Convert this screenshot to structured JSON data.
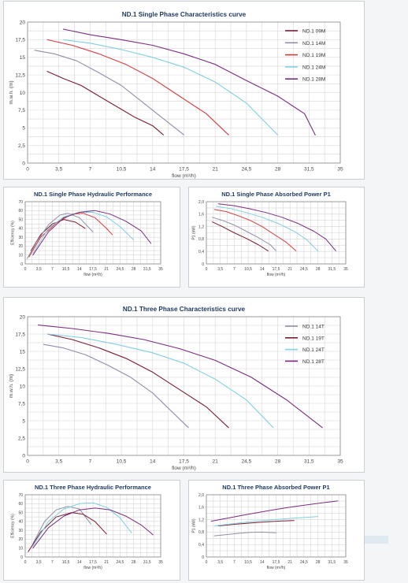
{
  "colors": {
    "09M": "#7a1c2e",
    "14M": "#8d8fa8",
    "19M": "#d63a3a",
    "24M": "#7fd0e0",
    "28M": "#7b2c7e",
    "14T": "#8d8fa8",
    "19T": "#7a1c2e",
    "24T": "#7fd0e0",
    "28T": "#7b2c7e"
  },
  "charts": [
    {
      "id": "single-characteristics",
      "chart_data": {
        "type": "line",
        "title": "ND.1 Single Phase Characteristics curve",
        "xlabel": "flow (m³/h)",
        "ylabel": "m.w.h. (m)",
        "xlim": [
          0,
          35
        ],
        "ylim": [
          0,
          20
        ],
        "xticks": [
          "0",
          "3,5",
          "7",
          "10,5",
          "14",
          "17,5",
          "21",
          "24,5",
          "28",
          "31,5",
          "35"
        ],
        "yticks": [
          "0",
          "2,5",
          "5",
          "7,5",
          "10",
          "12,5",
          "15",
          "17,5",
          "20"
        ],
        "grid": true,
        "legend": "top-right",
        "series": [
          {
            "name": "ND.1 09M",
            "key": "09M",
            "x": [
              2.2,
              4,
              6,
              8,
              10,
              12,
              14,
              15.2
            ],
            "y": [
              13,
              12,
              11,
              9.5,
              8,
              6.5,
              5.3,
              4
            ]
          },
          {
            "name": "ND.1 14M",
            "key": "14M",
            "x": [
              0.8,
              3,
              5.5,
              8,
              10.5,
              13,
              15,
              17.5
            ],
            "y": [
              16,
              15.5,
              14.5,
              12.8,
              11,
              8.5,
              6.5,
              4
            ]
          },
          {
            "name": "ND.1 19M",
            "key": "19M",
            "x": [
              2.2,
              5,
              8,
              11,
              14,
              17,
              20,
              22.5
            ],
            "y": [
              17.5,
              16.7,
              15.5,
              14,
              12,
              9.5,
              7,
              4
            ]
          },
          {
            "name": "ND.1 24M",
            "key": "24M",
            "x": [
              4,
              7,
              10.5,
              14,
              17.5,
              21,
              24.5,
              28
            ],
            "y": [
              17.5,
              17,
              16.1,
              15,
              13.6,
              11.5,
              8.5,
              4
            ]
          },
          {
            "name": "ND.1 28M",
            "key": "28M",
            "x": [
              4,
              7,
              10.5,
              14,
              17.5,
              21,
              24.5,
              28,
              31,
              32.2
            ],
            "y": [
              19,
              18.2,
              17.5,
              16.7,
              15.5,
              14,
              11.7,
              9.5,
              7,
              4
            ]
          }
        ]
      }
    },
    {
      "id": "single-hydraulic",
      "chart_data": {
        "type": "line",
        "title": "ND.1 Single Phase Hydraulic Performance",
        "xlabel": "flow (m³/h)",
        "ylabel": "Efficiency (%)",
        "xlim": [
          0,
          35
        ],
        "ylim": [
          0,
          70
        ],
        "xticks": [
          "0",
          "3,5",
          "7",
          "10,5",
          "14",
          "17,5",
          "21",
          "24,5",
          "28",
          "31,5",
          "35"
        ],
        "yticks": [
          "0",
          "10",
          "20",
          "30",
          "40",
          "50",
          "60",
          "70"
        ],
        "grid": true,
        "series": [
          {
            "key": "09M",
            "x": [
              1.5,
              4,
              7,
              10,
              13,
              15.5
            ],
            "y": [
              15,
              33,
              45,
              50,
              47,
              40
            ]
          },
          {
            "key": "14M",
            "x": [
              0.5,
              3,
              6,
              9,
              11,
              14,
              17.5
            ],
            "y": [
              6,
              25,
              44,
              55,
              57,
              52,
              36
            ]
          },
          {
            "key": "19M",
            "x": [
              1,
              4,
              8,
              12,
              15,
              18,
              21,
              22.5
            ],
            "y": [
              8,
              30,
              46,
              56,
              57,
              52,
              40,
              33
            ]
          },
          {
            "key": "24M",
            "x": [
              2,
              6,
              10,
              14,
              17.5,
              21,
              24.5,
              28
            ],
            "y": [
              12,
              40,
              53,
              58,
              58,
              53,
              42,
              27
            ]
          },
          {
            "key": "28M",
            "x": [
              2,
              6,
              10,
              14,
              18,
              22,
              26,
              30,
              32.5
            ],
            "y": [
              10,
              36,
              52,
              58,
              60,
              56,
              48,
              37,
              23
            ]
          }
        ]
      }
    },
    {
      "id": "single-power",
      "chart_data": {
        "type": "line",
        "title": "ND.1 Single Phase Absorbed Power P1",
        "xlabel": "flow (m³/h)",
        "ylabel": "P1 (kW)",
        "xlim": [
          0,
          35
        ],
        "ylim": [
          0,
          2
        ],
        "xticks": [
          "0",
          "3,5",
          "7",
          "10,5",
          "14",
          "17,5",
          "21",
          "24,5",
          "28",
          "31,5",
          "35"
        ],
        "yticks": [
          "0",
          "0,4",
          "0,8",
          "1,2",
          "1,6",
          "2,0"
        ],
        "grid": true,
        "series": [
          {
            "key": "09M",
            "x": [
              1.5,
              4,
              7,
              10,
              13,
              15.5
            ],
            "y": [
              1.35,
              1.2,
              1.0,
              0.82,
              0.62,
              0.42
            ]
          },
          {
            "key": "14M",
            "x": [
              1.5,
              4,
              7,
              10,
              13,
              16,
              17.5
            ],
            "y": [
              1.5,
              1.4,
              1.25,
              1.05,
              0.85,
              0.62,
              0.42
            ]
          },
          {
            "key": "19M",
            "x": [
              2,
              5,
              8,
              11,
              14,
              17,
              20,
              22.5
            ],
            "y": [
              1.75,
              1.68,
              1.55,
              1.4,
              1.2,
              0.95,
              0.7,
              0.42
            ]
          },
          {
            "key": "24M",
            "x": [
              2.5,
              6,
              10,
              14,
              18,
              22,
              25,
              28
            ],
            "y": [
              1.85,
              1.78,
              1.65,
              1.5,
              1.3,
              1.05,
              0.8,
              0.42
            ]
          },
          {
            "key": "28M",
            "x": [
              3,
              7,
              11,
              15,
              19,
              23,
              27,
              30,
              32.5
            ],
            "y": [
              1.93,
              1.87,
              1.77,
              1.65,
              1.5,
              1.3,
              1.05,
              0.8,
              0.42
            ]
          }
        ]
      }
    },
    {
      "id": "three-characteristics",
      "chart_data": {
        "type": "line",
        "title": "ND.1 Three Phase Characteristics curve",
        "xlabel": "flow (m³/h)",
        "ylabel": "m.w.h. (m)",
        "xlim": [
          0,
          35
        ],
        "ylim": [
          0,
          20
        ],
        "xticks": [
          "0",
          "3,5",
          "7",
          "10,5",
          "14",
          "17,5",
          "21",
          "24,5",
          "28",
          "31,5",
          "35"
        ],
        "yticks": [
          "0",
          "2,5",
          "5",
          "7,5",
          "10",
          "12,5",
          "15",
          "17,5",
          "20"
        ],
        "grid": true,
        "legend": "top-right",
        "series": [
          {
            "name": "ND.1 14T",
            "key": "14T",
            "x": [
              1.8,
              4,
              6.5,
              9,
              11.5,
              14,
              16,
              18
            ],
            "y": [
              16,
              15.5,
              14.5,
              13,
              11.3,
              9,
              6.5,
              4
            ]
          },
          {
            "name": "ND.1 19T",
            "key": "19T",
            "x": [
              2.2,
              5,
              8,
              11,
              14,
              17,
              20,
              22.5
            ],
            "y": [
              17.5,
              16.7,
              15.5,
              14,
              12,
              9.5,
              7,
              4
            ]
          },
          {
            "name": "ND.1 24T",
            "key": "24T",
            "x": [
              2.2,
              6,
              10,
              14,
              17.5,
              21,
              24.5,
              27.5
            ],
            "y": [
              17.5,
              17,
              16,
              14.8,
              13.3,
              11,
              8,
              4
            ]
          },
          {
            "name": "ND.1 28T",
            "key": "28T",
            "x": [
              1.2,
              5,
              9,
              13,
              17,
              21,
              25,
              29,
              33
            ],
            "y": [
              18.8,
              18.3,
              17.6,
              16.7,
              15.4,
              13.7,
              11.3,
              8,
              4
            ]
          }
        ]
      }
    },
    {
      "id": "three-hydraulic",
      "chart_data": {
        "type": "line",
        "title": "ND.1 Three Phase Hydraulic Performance",
        "xlabel": "flow (m³/h)",
        "ylabel": "Efficiency (%)",
        "xlim": [
          0,
          35
        ],
        "ylim": [
          0,
          70
        ],
        "xticks": [
          "0",
          "3,5",
          "7",
          "10,5",
          "14",
          "17,5",
          "21",
          "24,5",
          "28",
          "31,5",
          "35"
        ],
        "yticks": [
          "0",
          "10",
          "20",
          "30",
          "40",
          "50",
          "60",
          "70"
        ],
        "grid": true,
        "series": [
          {
            "key": "14T",
            "x": [
              2,
              5,
              8,
              11,
              14,
              17
            ],
            "y": [
              15,
              40,
              53,
              57,
              54,
              37
            ]
          },
          {
            "key": "19T",
            "x": [
              0.8,
              4,
              8,
              12,
              15,
              18,
              21
            ],
            "y": [
              6,
              28,
              45,
              50,
              48,
              40,
              26
            ]
          },
          {
            "key": "24T",
            "x": [
              2,
              6,
              10,
              14,
              17.5,
              21,
              24.5,
              27.5
            ],
            "y": [
              12,
              40,
              54,
              60,
              61,
              56,
              44,
              27
            ]
          },
          {
            "key": "28T",
            "x": [
              2,
              6,
              10,
              14,
              18,
              22,
              26,
              30,
              33
            ],
            "y": [
              10,
              33,
              46,
              53,
              55,
              53,
              46,
              36,
              25
            ]
          }
        ]
      }
    },
    {
      "id": "three-power",
      "chart_data": {
        "type": "line",
        "title": "ND.1 Three Phase Absorbed Power P1",
        "xlabel": "flow (m³/h)",
        "ylabel": "P1 (kW)",
        "xlim": [
          0,
          35
        ],
        "ylim": [
          0,
          2
        ],
        "xticks": [
          "0",
          "3,5",
          "7",
          "10,5",
          "14",
          "17,5",
          "21",
          "24,5",
          "28",
          "31,5",
          "35"
        ],
        "yticks": [
          "0",
          "0,4",
          "0,8",
          "1,2",
          "1,6",
          "2,0"
        ],
        "grid": true,
        "series": [
          {
            "key": "14T",
            "x": [
              2,
              5,
              8,
              11,
              14,
              17.5
            ],
            "y": [
              0.68,
              0.72,
              0.76,
              0.79,
              0.8,
              0.78
            ]
          },
          {
            "key": "19T",
            "x": [
              3,
              7,
              11,
              15,
              19,
              22
            ],
            "y": [
              1.0,
              1.05,
              1.09,
              1.13,
              1.16,
              1.17
            ]
          },
          {
            "key": "24T",
            "x": [
              2,
              6,
              10,
              14,
              18,
              22,
              26,
              28
            ],
            "y": [
              1.0,
              1.06,
              1.12,
              1.17,
              1.21,
              1.25,
              1.28,
              1.3
            ]
          },
          {
            "key": "28T",
            "x": [
              1.2,
              5,
              9,
              13,
              17,
              21,
              25,
              29,
              33
            ],
            "y": [
              1.15,
              1.24,
              1.34,
              1.43,
              1.52,
              1.6,
              1.67,
              1.74,
              1.8
            ]
          }
        ]
      }
    }
  ]
}
